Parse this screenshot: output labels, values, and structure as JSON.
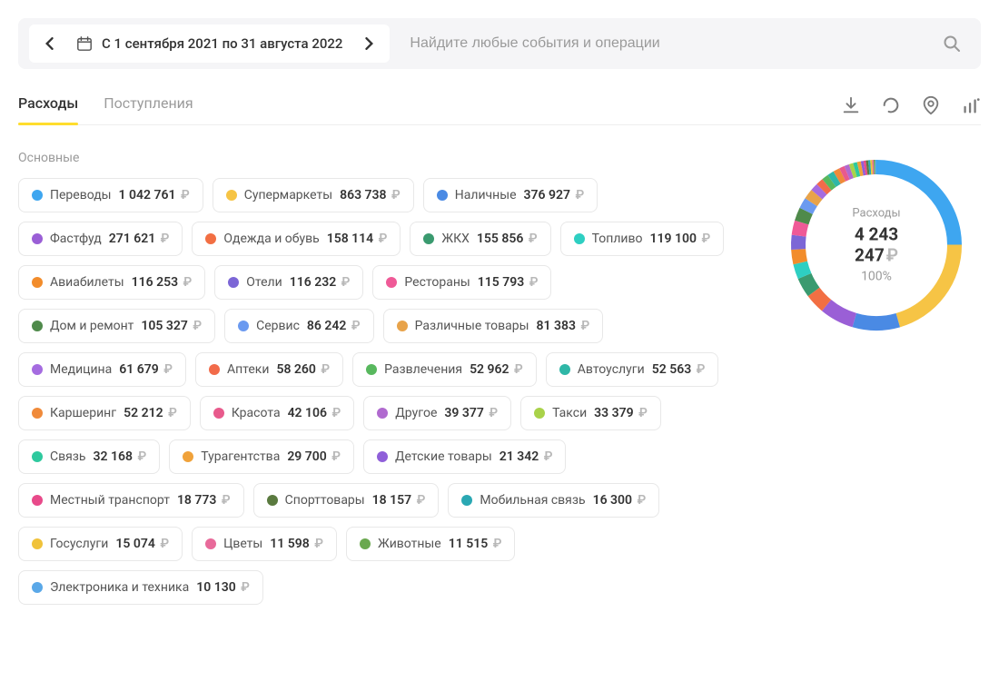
{
  "header": {
    "date_range": "С 1 сентября 2021 по 31 августа 2022",
    "search_placeholder": "Найдите любые события и операции"
  },
  "tabs": {
    "expenses": "Расходы",
    "income": "Поступления"
  },
  "section_title": "Основные",
  "donut": {
    "label": "Расходы",
    "total": "4 243 247",
    "percent": "100%",
    "stroke_width": 16,
    "background_color": "#ffffff"
  },
  "currency": "₽",
  "categories": [
    {
      "label": "Переводы",
      "value": "1 042 761",
      "color": "#3ea6f0"
    },
    {
      "label": "Супермаркеты",
      "value": "863 738",
      "color": "#f6c445"
    },
    {
      "label": "Наличные",
      "value": "376 927",
      "color": "#4a8ae4"
    },
    {
      "label": "Фастфуд",
      "value": "271 621",
      "color": "#9a5fd6"
    },
    {
      "label": "Одежда и обувь",
      "value": "158 114",
      "color": "#f26f43"
    },
    {
      "label": "ЖКХ",
      "value": "155 856",
      "color": "#3a9a6f"
    },
    {
      "label": "Топливо",
      "value": "119 100",
      "color": "#2ecfc2"
    },
    {
      "label": "Авиабилеты",
      "value": "116 253",
      "color": "#f28c2b"
    },
    {
      "label": "Отели",
      "value": "116 232",
      "color": "#7c66d6"
    },
    {
      "label": "Рестораны",
      "value": "115 793",
      "color": "#ef5a97"
    },
    {
      "label": "Дом и ремонт",
      "value": "105 327",
      "color": "#4f8a4b"
    },
    {
      "label": "Сервис",
      "value": "86 242",
      "color": "#6b9af0"
    },
    {
      "label": "Различные товары",
      "value": "81 383",
      "color": "#e8a34a"
    },
    {
      "label": "Медицина",
      "value": "61 679",
      "color": "#a56ce0"
    },
    {
      "label": "Аптеки",
      "value": "58 260",
      "color": "#f26b4a"
    },
    {
      "label": "Развлечения",
      "value": "52 962",
      "color": "#58b85e"
    },
    {
      "label": "Автоуслуги",
      "value": "52 563",
      "color": "#2fb7a7"
    },
    {
      "label": "Каршеринг",
      "value": "52 212",
      "color": "#f08a3a"
    },
    {
      "label": "Красота",
      "value": "42 106",
      "color": "#e85a8c"
    },
    {
      "label": "Другое",
      "value": "39 377",
      "color": "#b06acf"
    },
    {
      "label": "Такси",
      "value": "33 379",
      "color": "#a9d24a"
    },
    {
      "label": "Связь",
      "value": "32 168",
      "color": "#2ec99e"
    },
    {
      "label": "Турагентства",
      "value": "29 700",
      "color": "#f0a23a"
    },
    {
      "label": "Детские товары",
      "value": "21 342",
      "color": "#8f5fd9"
    },
    {
      "label": "Местный транспорт",
      "value": "18 773",
      "color": "#e84a8a"
    },
    {
      "label": "Спорттовары",
      "value": "18 157",
      "color": "#5a7a3f"
    },
    {
      "label": "Мобильная связь",
      "value": "16 300",
      "color": "#2aa8b3"
    },
    {
      "label": "Госуслуги",
      "value": "15 074",
      "color": "#f0c23a"
    },
    {
      "label": "Цветы",
      "value": "11 598",
      "color": "#e86a9a"
    },
    {
      "label": "Животные",
      "value": "11 515",
      "color": "#6aa84f"
    },
    {
      "label": "Электроника и техника",
      "value": "10 130",
      "color": "#5aa8e8"
    }
  ]
}
